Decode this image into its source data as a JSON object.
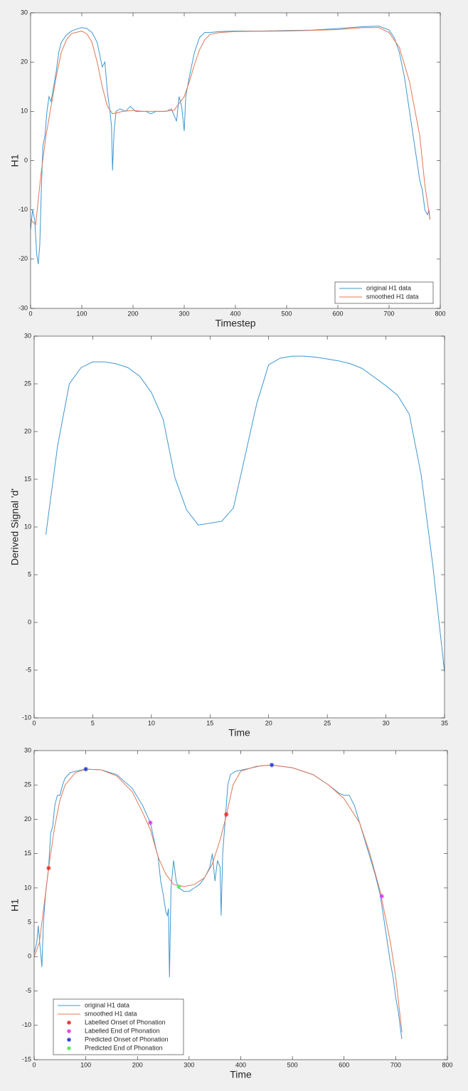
{
  "chart_data": [
    {
      "type": "line",
      "xlabel": "Timestep",
      "ylabel": "H1",
      "xlim": [
        0,
        800
      ],
      "ylim": [
        -30,
        30
      ],
      "xticks": [
        0,
        100,
        200,
        300,
        400,
        500,
        600,
        700,
        800
      ],
      "yticks": [
        -30,
        -20,
        -10,
        0,
        10,
        20,
        30
      ],
      "legend": "lower right",
      "series": [
        {
          "name": "original H1 data",
          "color": "#3f97d1",
          "x": [
            0,
            4,
            8,
            12,
            15,
            18,
            21,
            24,
            28,
            32,
            36,
            40,
            45,
            50,
            55,
            60,
            70,
            80,
            90,
            100,
            110,
            120,
            130,
            140,
            145,
            150,
            155,
            158,
            160,
            163,
            167,
            175,
            185,
            195,
            205,
            215,
            225,
            235,
            245,
            255,
            265,
            275,
            285,
            290,
            295,
            300,
            303,
            310,
            320,
            330,
            340,
            350,
            370,
            400,
            450,
            500,
            550,
            600,
            650,
            680,
            700,
            710,
            720,
            730,
            740,
            750,
            760,
            765,
            770,
            775,
            778,
            780
          ],
          "values": [
            -14,
            -10,
            -12,
            -19,
            -21,
            -17,
            -6,
            3,
            5,
            10,
            13,
            12,
            15,
            18,
            22,
            24,
            25.5,
            26.3,
            26.7,
            27,
            26.8,
            26,
            24,
            19,
            20,
            14,
            10,
            7,
            -2,
            6,
            10,
            10.5,
            10,
            11,
            10,
            10,
            10,
            9.5,
            10,
            10,
            10,
            10.5,
            8,
            13,
            11,
            6,
            13,
            17,
            22,
            25,
            26,
            26,
            26.2,
            26.3,
            26.3,
            26.4,
            26.5,
            26.8,
            27.2,
            27.3,
            26.5,
            25,
            22,
            17,
            10,
            3,
            -4,
            -6,
            -10,
            -11,
            -10,
            -12
          ]
        },
        {
          "name": "smoothed H1 data",
          "color": "#e07856",
          "x": [
            0,
            10,
            20,
            30,
            40,
            50,
            60,
            70,
            80,
            100,
            110,
            120,
            130,
            140,
            150,
            160,
            180,
            200,
            220,
            240,
            260,
            280,
            300,
            310,
            320,
            330,
            340,
            350,
            370,
            400,
            500,
            600,
            650,
            680,
            700,
            720,
            740,
            760,
            770,
            780
          ],
          "values": [
            -12,
            -13,
            -3,
            5,
            11,
            17,
            22,
            24.5,
            25.8,
            26.3,
            25.7,
            24,
            20,
            15,
            11,
            9.5,
            10,
            10.2,
            10,
            10,
            10,
            10.2,
            13,
            16,
            19.5,
            22.5,
            24.5,
            25.6,
            26,
            26.2,
            26.3,
            26.6,
            27,
            27,
            26,
            23,
            16,
            5,
            -5,
            -12
          ]
        }
      ]
    },
    {
      "type": "line",
      "xlabel": "Time",
      "ylabel": "Derived Signal 'd'",
      "xlim": [
        0,
        35
      ],
      "ylim": [
        -10,
        30
      ],
      "xticks": [
        0,
        5,
        10,
        15,
        20,
        25,
        30,
        35
      ],
      "yticks": [
        -10,
        -5,
        0,
        5,
        10,
        15,
        20,
        25,
        30
      ],
      "series": [
        {
          "color": "#3f97d1",
          "x": [
            1,
            2,
            3,
            4,
            5,
            6,
            7,
            8,
            9,
            10,
            11,
            12,
            13,
            14,
            15,
            16,
            17,
            18,
            19,
            20,
            21,
            22,
            23,
            24,
            25,
            26,
            27,
            28,
            29,
            30,
            31,
            32,
            33,
            34,
            35
          ],
          "values": [
            9.2,
            18.5,
            25,
            26.7,
            27.3,
            27.3,
            27.1,
            26.7,
            25.8,
            24.1,
            21.3,
            15.2,
            11.8,
            10.2,
            10.4,
            10.6,
            12,
            17.5,
            23,
            27,
            27.7,
            27.9,
            27.9,
            27.8,
            27.6,
            27.4,
            27.1,
            26.6,
            25.7,
            24.8,
            23.8,
            21.8,
            15.5,
            6,
            -5.2
          ]
        }
      ]
    },
    {
      "type": "line",
      "xlabel": "Time",
      "ylabel": "H1",
      "xlim": [
        0,
        800
      ],
      "ylim": [
        -15,
        30
      ],
      "xticks": [
        0,
        100,
        200,
        300,
        400,
        500,
        600,
        700,
        800
      ],
      "yticks": [
        -15,
        -10,
        -5,
        0,
        5,
        10,
        15,
        20,
        25,
        30
      ],
      "legend": "lower left",
      "series": [
        {
          "name": "original H1 data",
          "color": "#3f97d1",
          "x": [
            0,
            5,
            8,
            12,
            15,
            18,
            22,
            25,
            28,
            32,
            36,
            40,
            45,
            50,
            55,
            60,
            70,
            80,
            100,
            130,
            160,
            190,
            210,
            225,
            235,
            240,
            245,
            250,
            255,
            258,
            260,
            262,
            265,
            270,
            275,
            280,
            290,
            300,
            310,
            320,
            330,
            340,
            345,
            350,
            355,
            360,
            362,
            365,
            370,
            375,
            380,
            390,
            410,
            440,
            460,
            500,
            540,
            570,
            590,
            600,
            610,
            620,
            640,
            660,
            670,
            680,
            690,
            695,
            700,
            705,
            710,
            712
          ],
          "values": [
            0.5,
            2,
            4.5,
            1,
            -1.5,
            5,
            9,
            11,
            13,
            18,
            19,
            22,
            23.5,
            23.5,
            25,
            26,
            26.8,
            27,
            27.3,
            27.2,
            26.5,
            24.5,
            22,
            19.5,
            16,
            14.5,
            11,
            9,
            6.5,
            6,
            7,
            -3,
            10,
            14,
            11,
            10,
            9.5,
            9.5,
            10,
            10.5,
            11.5,
            13,
            15,
            11,
            14,
            13,
            6,
            15,
            20,
            25,
            26.5,
            27,
            27.3,
            27.8,
            27.9,
            27.5,
            26.5,
            25,
            23.8,
            23.5,
            23.5,
            22,
            17,
            12,
            9,
            4,
            -1,
            -3,
            -6,
            -8,
            -11,
            -12
          ]
        },
        {
          "name": "smoothed H1 data",
          "color": "#e07856",
          "x": [
            0,
            10,
            20,
            30,
            40,
            50,
            60,
            80,
            100,
            130,
            160,
            190,
            210,
            225,
            240,
            255,
            270,
            290,
            310,
            330,
            345,
            360,
            372,
            385,
            400,
            430,
            460,
            500,
            540,
            570,
            600,
            630,
            650,
            670,
            690,
            700,
            712
          ],
          "values": [
            0,
            2,
            8,
            14,
            19,
            22.8,
            25,
            26.8,
            27.3,
            27.2,
            26.3,
            24,
            21,
            18.5,
            14.5,
            12,
            10.5,
            10.2,
            10.5,
            11.5,
            13.5,
            17,
            20.5,
            25,
            27,
            27.7,
            27.9,
            27.5,
            26.5,
            25,
            23,
            19.5,
            15,
            9.5,
            2,
            -3,
            -11
          ]
        },
        {
          "name": "Labelled Onset of Phonation",
          "color": "#e8322c",
          "marker": "*",
          "x": [
            28,
            372
          ],
          "values": [
            12.9,
            20.7
          ]
        },
        {
          "name": "Labelled End of Phonation",
          "color": "#e040e0",
          "marker": "*",
          "x": [
            225,
            673
          ],
          "values": [
            19.5,
            8.8
          ]
        },
        {
          "name": "Predicted Onset of Phonation",
          "color": "#2a3fd6",
          "marker": "*",
          "x": [
            100,
            460
          ],
          "values": [
            27.3,
            27.9
          ]
        },
        {
          "name": "Predicted End of Phonation",
          "color": "#5ee85e",
          "marker": "*",
          "x": [
            280
          ],
          "values": [
            10.2
          ]
        }
      ]
    }
  ]
}
